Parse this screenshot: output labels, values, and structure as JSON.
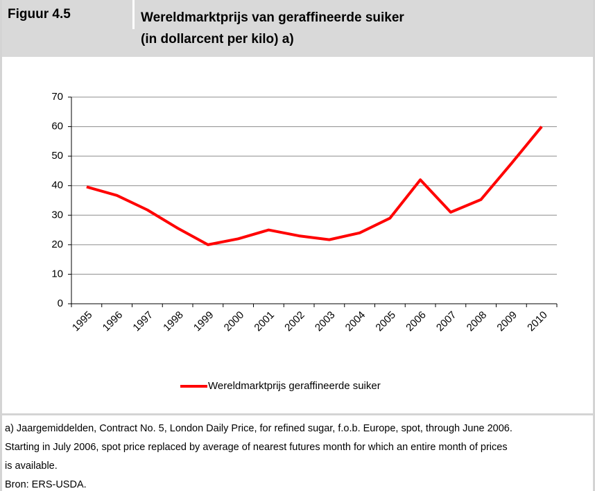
{
  "header": {
    "label": "Figuur 4.5",
    "title": [
      "Wereldmarktprijs van geraffineerde suiker",
      "(in dollarcent per kilo) a)"
    ]
  },
  "chart_data": {
    "type": "line",
    "categories": [
      "1995",
      "1996",
      "1997",
      "1998",
      "1999",
      "2000",
      "2001",
      "2002",
      "2003",
      "2004",
      "2005",
      "2006",
      "2007",
      "2008",
      "2009",
      "2010"
    ],
    "series": [
      {
        "name": "Wereldmarktprijs geraffineerde suiker",
        "color": "#ff0000",
        "values": [
          39.6,
          36.7,
          31.8,
          25.6,
          20.0,
          22.0,
          25.0,
          23.0,
          21.7,
          24.0,
          29.0,
          42.0,
          31.0,
          35.3,
          47.5,
          60.0
        ]
      }
    ],
    "ylim": [
      0,
      70
    ],
    "yticks": [
      0,
      10,
      20,
      30,
      40,
      50,
      60,
      70
    ],
    "grid": true,
    "legend": "bottom"
  },
  "footer": {
    "lines": [
      "a) Jaargemiddelden, Contract No. 5, London Daily Price, for refined sugar, f.o.b. Europe, spot, through June 2006.",
      "Starting in July 2006, spot price replaced by average of nearest futures month for which an entire month of prices",
      "is available.",
      "Bron: ERS-USDA."
    ]
  }
}
